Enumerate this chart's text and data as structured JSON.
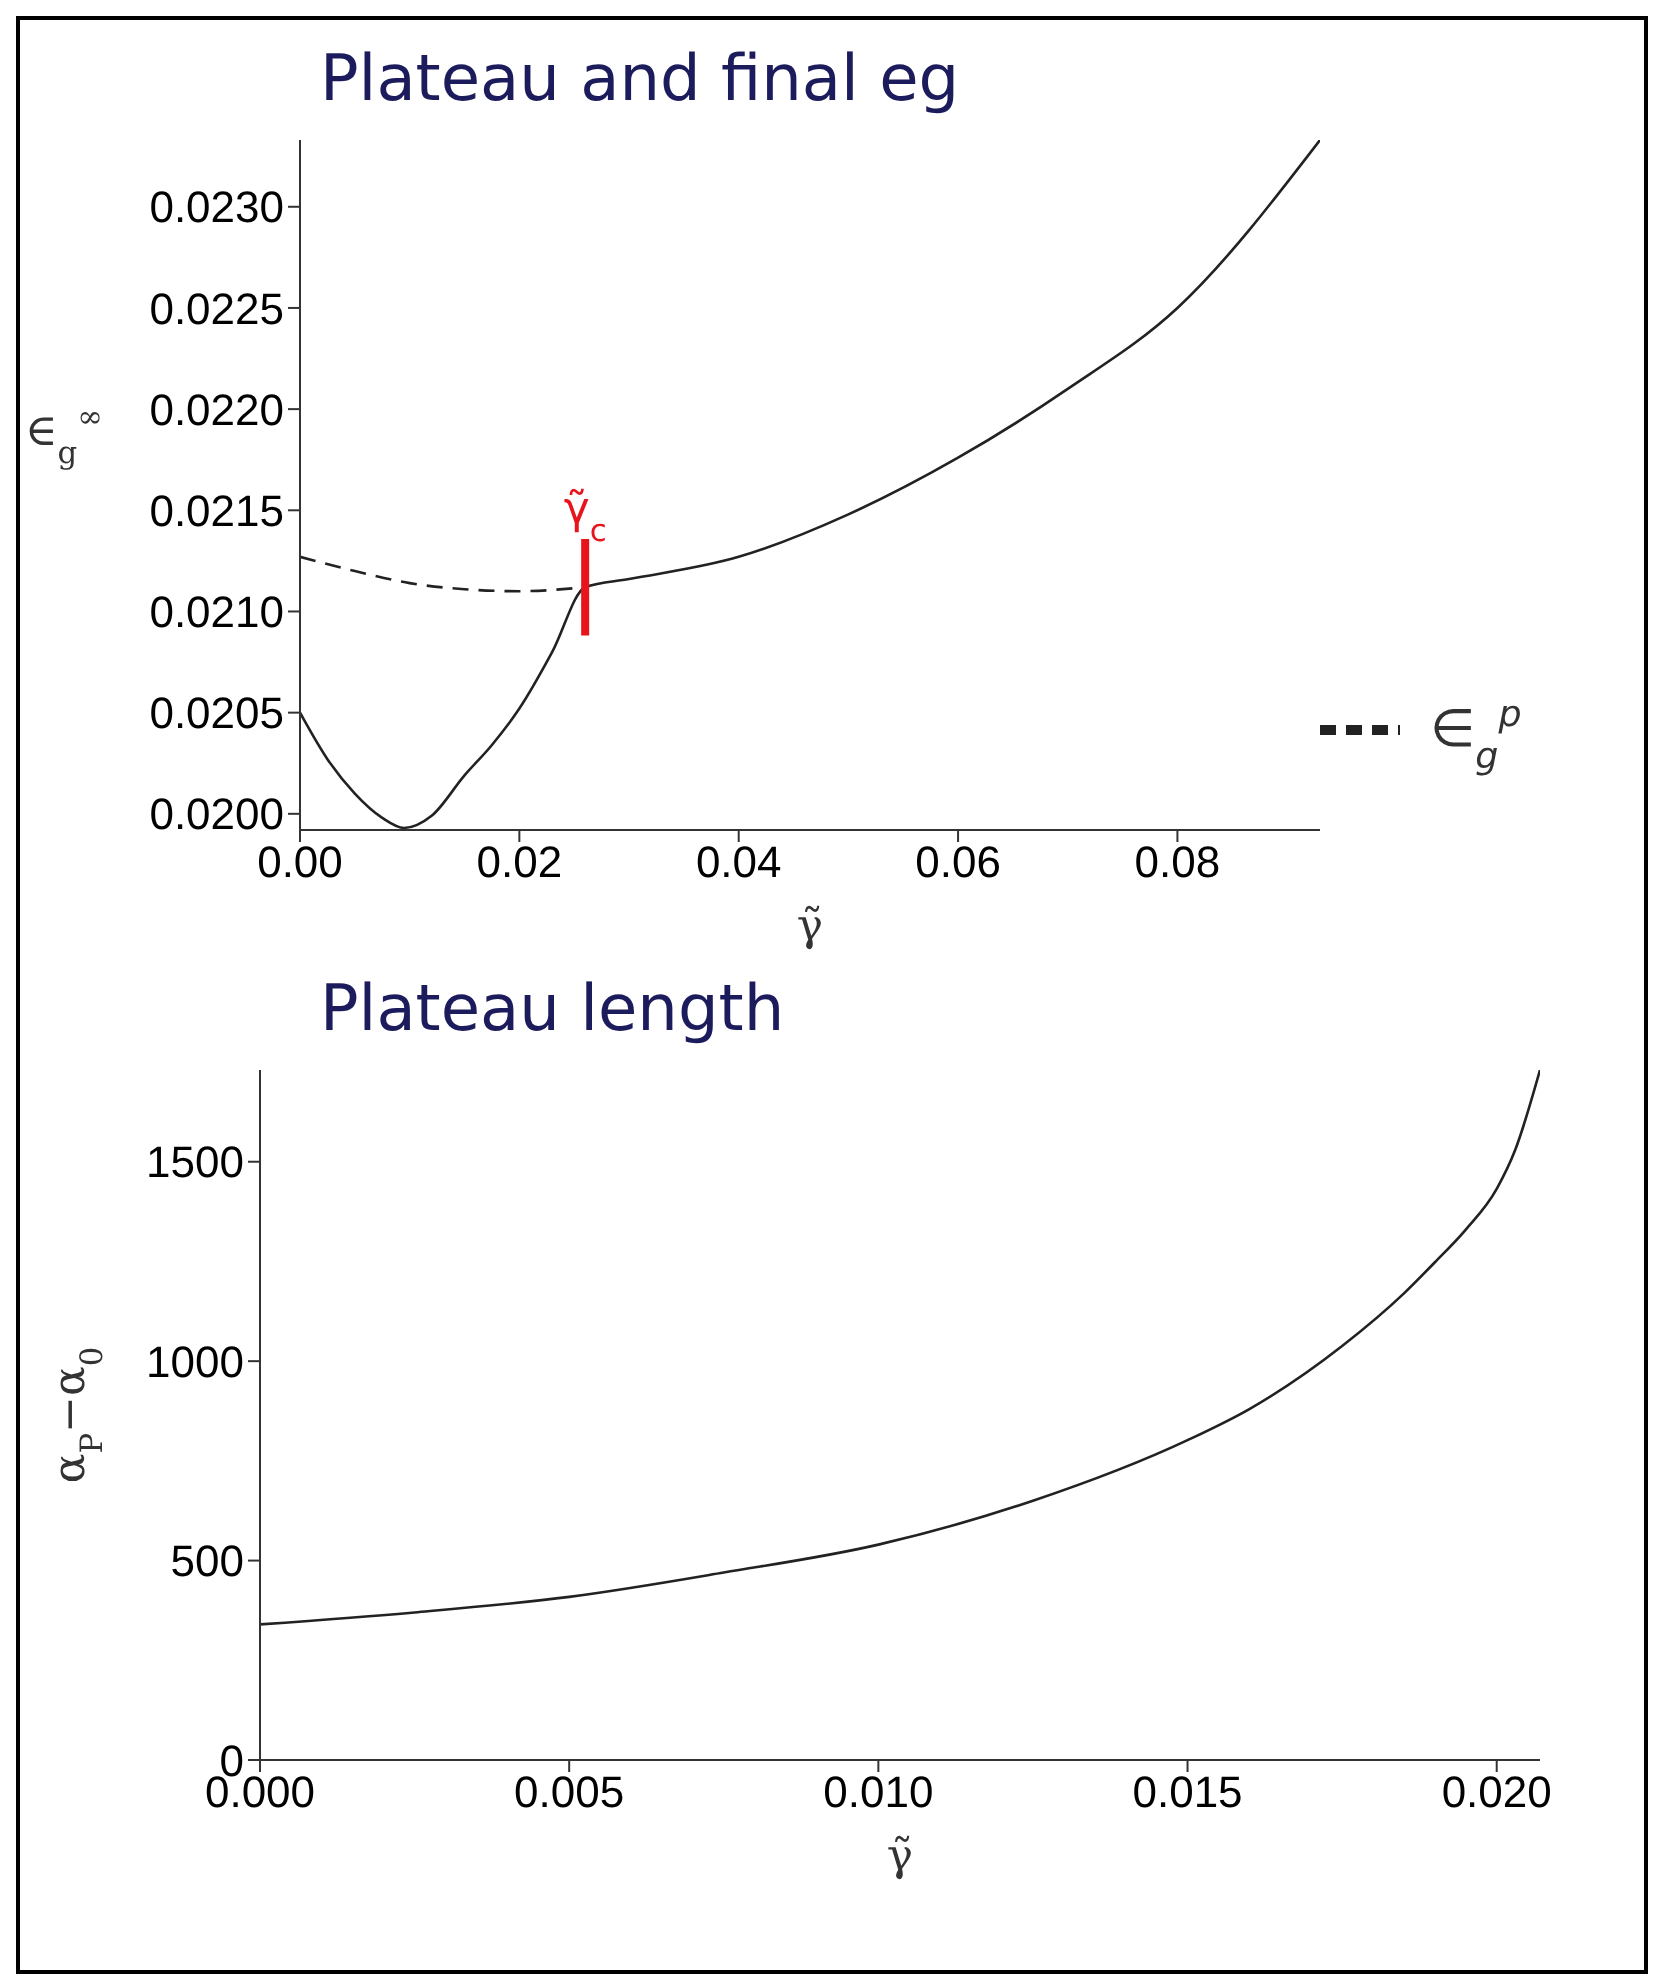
{
  "chart_data": [
    {
      "type": "line",
      "title": "Plateau and final eg",
      "xlabel": "γ̃",
      "ylabel": "∈$_{g}$$^{∞}$",
      "xlim": [
        0,
        0.093
      ],
      "ylim": [
        0.01992,
        0.02333
      ],
      "xticks": [
        {
          "value": 0,
          "label": "0.00"
        },
        {
          "value": 0.02,
          "label": "0.02"
        },
        {
          "value": 0.04,
          "label": "0.04"
        },
        {
          "value": 0.06,
          "label": "0.06"
        },
        {
          "value": 0.08,
          "label": "0.08"
        }
      ],
      "yticks": [
        {
          "value": 0.02,
          "label": "0.0200"
        },
        {
          "value": 0.0205,
          "label": "0.0205"
        },
        {
          "value": 0.021,
          "label": "0.0210"
        },
        {
          "value": 0.0215,
          "label": "0.0215"
        },
        {
          "value": 0.022,
          "label": "0.0220"
        },
        {
          "value": 0.0225,
          "label": "0.0225"
        },
        {
          "value": 0.023,
          "label": "0.0230"
        }
      ],
      "series": [
        {
          "color": "#222222",
          "line_style": "solid",
          "x": [
            0,
            0.0025,
            0.005,
            0.0075,
            0.0095,
            0.012,
            0.015,
            0.0175,
            0.02,
            0.023,
            0.026,
            0.03,
            0.04,
            0.05,
            0.06,
            0.07,
            0.08,
            0.093
          ],
          "values": [
            0.0205,
            0.02027,
            0.0201,
            0.01998,
            0.01993,
            0.01999,
            0.02019,
            0.02034,
            0.02052,
            0.0208,
            0.02112,
            0.02116,
            0.02127,
            0.02148,
            0.02176,
            0.0221,
            0.0225,
            0.02333
          ]
        },
        {
          "name": "∈$_{g}$$^{p}$",
          "color": "#222222",
          "line_style": "dashed",
          "x": [
            0,
            0.005,
            0.01,
            0.015,
            0.02,
            0.026
          ],
          "values": [
            0.02127,
            0.0212,
            0.02114,
            0.02111,
            0.0211,
            0.02112
          ]
        }
      ],
      "annotations": [
        {
          "text": "γ̃$_{c}$",
          "x": 0.026,
          "y": 0.02112
        }
      ],
      "legend": "bottom right",
      "grid": false
    },
    {
      "type": "line",
      "title": "Plateau length",
      "xlabel": "γ̃",
      "ylabel": "α$_{P}$−α$_{0}$",
      "xlim": [
        0,
        0.0207
      ],
      "ylim": [
        0,
        1730
      ],
      "xticks": [
        {
          "value": 0,
          "label": "0.000"
        },
        {
          "value": 0.005,
          "label": "0.005"
        },
        {
          "value": 0.01,
          "label": "0.010"
        },
        {
          "value": 0.015,
          "label": "0.015"
        },
        {
          "value": 0.02,
          "label": "0.020"
        }
      ],
      "yticks": [
        0,
        500,
        1000,
        1500
      ],
      "series": [
        {
          "color": "#222222",
          "line_style": "solid",
          "x": [
            0,
            0.0025,
            0.005,
            0.0075,
            0.01,
            0.0125,
            0.015,
            0.016,
            0.0175,
            0.0185,
            0.019,
            0.0195,
            0.02,
            0.0203,
            0.0207
          ],
          "values": [
            340,
            370,
            409,
            470,
            540,
            650,
            802,
            880,
            1038,
            1170,
            1248,
            1330,
            1432,
            1530,
            1730
          ]
        }
      ],
      "legend": false,
      "grid": false
    }
  ]
}
